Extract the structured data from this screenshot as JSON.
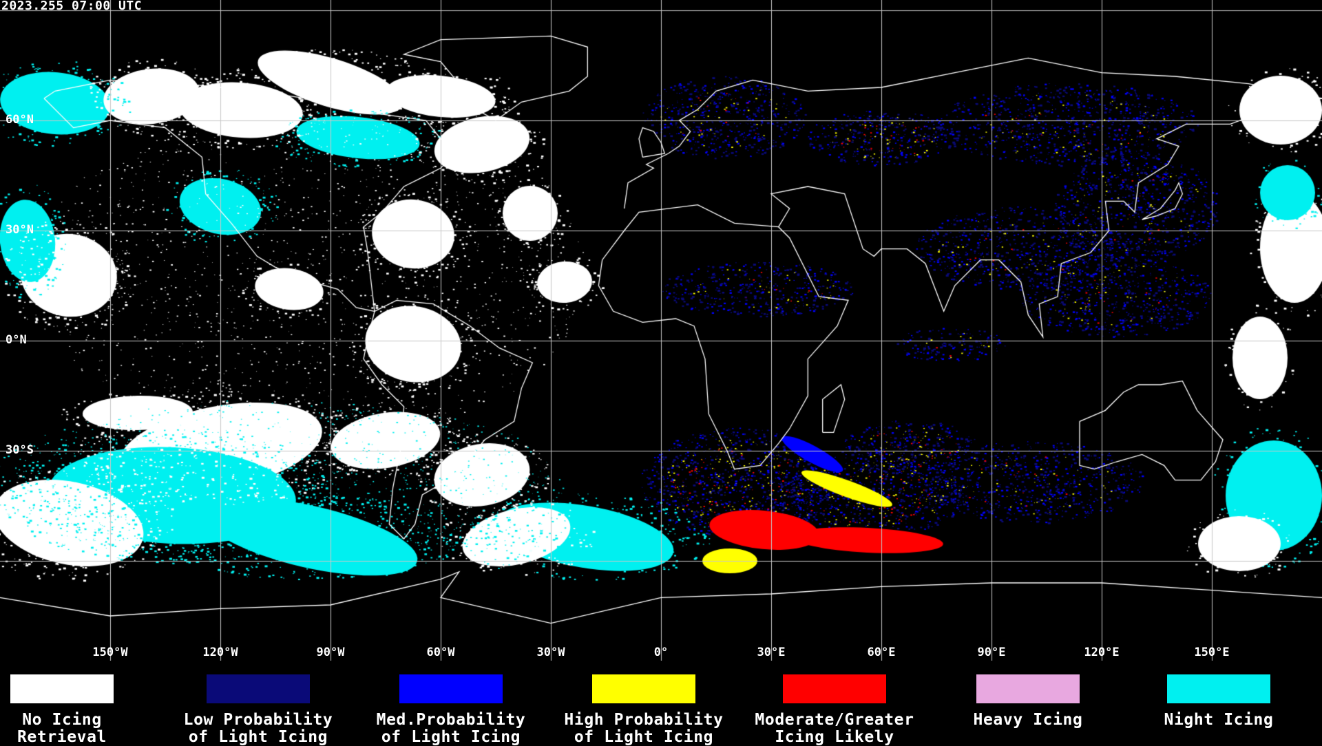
{
  "header": {
    "timestamp": "2023.255 07:00 UTC"
  },
  "map": {
    "longitude_labels": [
      "150°W",
      "120°W",
      "90°W",
      "60°W",
      "30°W",
      "0°",
      "30°E",
      "60°E",
      "90°E",
      "120°E",
      "150°E"
    ],
    "latitude_labels": [
      "60°N",
      "30°N",
      "0°N",
      "30°S"
    ],
    "background_color": "#000000",
    "grid_color": "#c8c8c8",
    "coastline_color": "#ffffff"
  },
  "legend": [
    {
      "label": "No Icing\nRetrieval",
      "color": "#ffffff"
    },
    {
      "label": "Low Probability\nof Light Icing",
      "color": "#0a0a78"
    },
    {
      "label": "Med.Probability\nof Light Icing",
      "color": "#0000ff"
    },
    {
      "label": "High Probability\nof Light Icing",
      "color": "#ffff00"
    },
    {
      "label": "Moderate/Greater\nIcing Likely",
      "color": "#ff0000"
    },
    {
      "label": "Heavy Icing",
      "color": "#e8a8e0"
    },
    {
      "label": "Night Icing",
      "color": "#00f0f0"
    }
  ]
}
